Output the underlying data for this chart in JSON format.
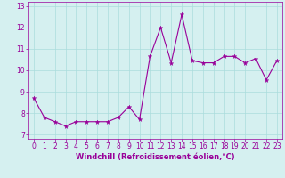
{
  "x": [
    0,
    1,
    2,
    3,
    4,
    5,
    6,
    7,
    8,
    9,
    10,
    11,
    12,
    13,
    14,
    15,
    16,
    17,
    18,
    19,
    20,
    21,
    22,
    23
  ],
  "y": [
    8.7,
    7.8,
    7.6,
    7.4,
    7.6,
    7.6,
    7.6,
    7.6,
    7.8,
    8.3,
    7.7,
    10.65,
    12.0,
    10.35,
    12.6,
    10.45,
    10.35,
    10.35,
    10.65,
    10.65,
    10.35,
    10.55,
    9.55,
    10.45
  ],
  "line_color": "#990099",
  "marker": "*",
  "marker_size": 3.5,
  "bg_color": "#d5f0f0",
  "grid_color": "#aadddd",
  "xlabel": "Windchill (Refroidissement éolien,°C)",
  "xlim": [
    -0.5,
    23.5
  ],
  "ylim": [
    6.8,
    13.2
  ],
  "yticks": [
    7,
    8,
    9,
    10,
    11,
    12,
    13
  ],
  "xticks": [
    0,
    1,
    2,
    3,
    4,
    5,
    6,
    7,
    8,
    9,
    10,
    11,
    12,
    13,
    14,
    15,
    16,
    17,
    18,
    19,
    20,
    21,
    22,
    23
  ],
  "tick_label_fontsize": 5.5,
  "xlabel_fontsize": 6.0
}
